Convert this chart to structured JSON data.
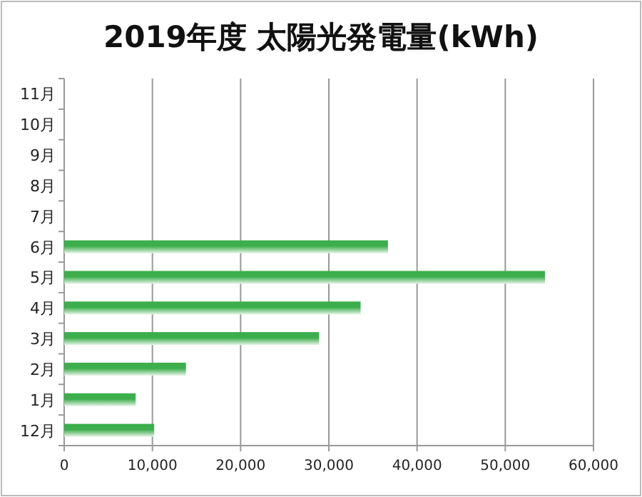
{
  "chart_data": {
    "type": "bar",
    "orientation": "horizontal",
    "title": "2019年度 太陽光発電量(kWh)",
    "categories": [
      "11月",
      "10月",
      "9月",
      "8月",
      "7月",
      "6月",
      "5月",
      "4月",
      "3月",
      "2月",
      "1月",
      "12月"
    ],
    "values": [
      null,
      null,
      null,
      null,
      null,
      36700,
      54500,
      33600,
      28900,
      13800,
      8100,
      10200
    ],
    "color": "#3cae4c",
    "xlim": [
      0,
      60000
    ],
    "xticks": [
      {
        "value": 0,
        "label": "0"
      },
      {
        "value": 10000,
        "label": "10,000"
      },
      {
        "value": 20000,
        "label": "20,000"
      },
      {
        "value": 30000,
        "label": "30,000"
      },
      {
        "value": 40000,
        "label": "40,000"
      },
      {
        "value": 50000,
        "label": "50,000"
      },
      {
        "value": 60000,
        "label": "60,000"
      }
    ],
    "grid": "x"
  }
}
